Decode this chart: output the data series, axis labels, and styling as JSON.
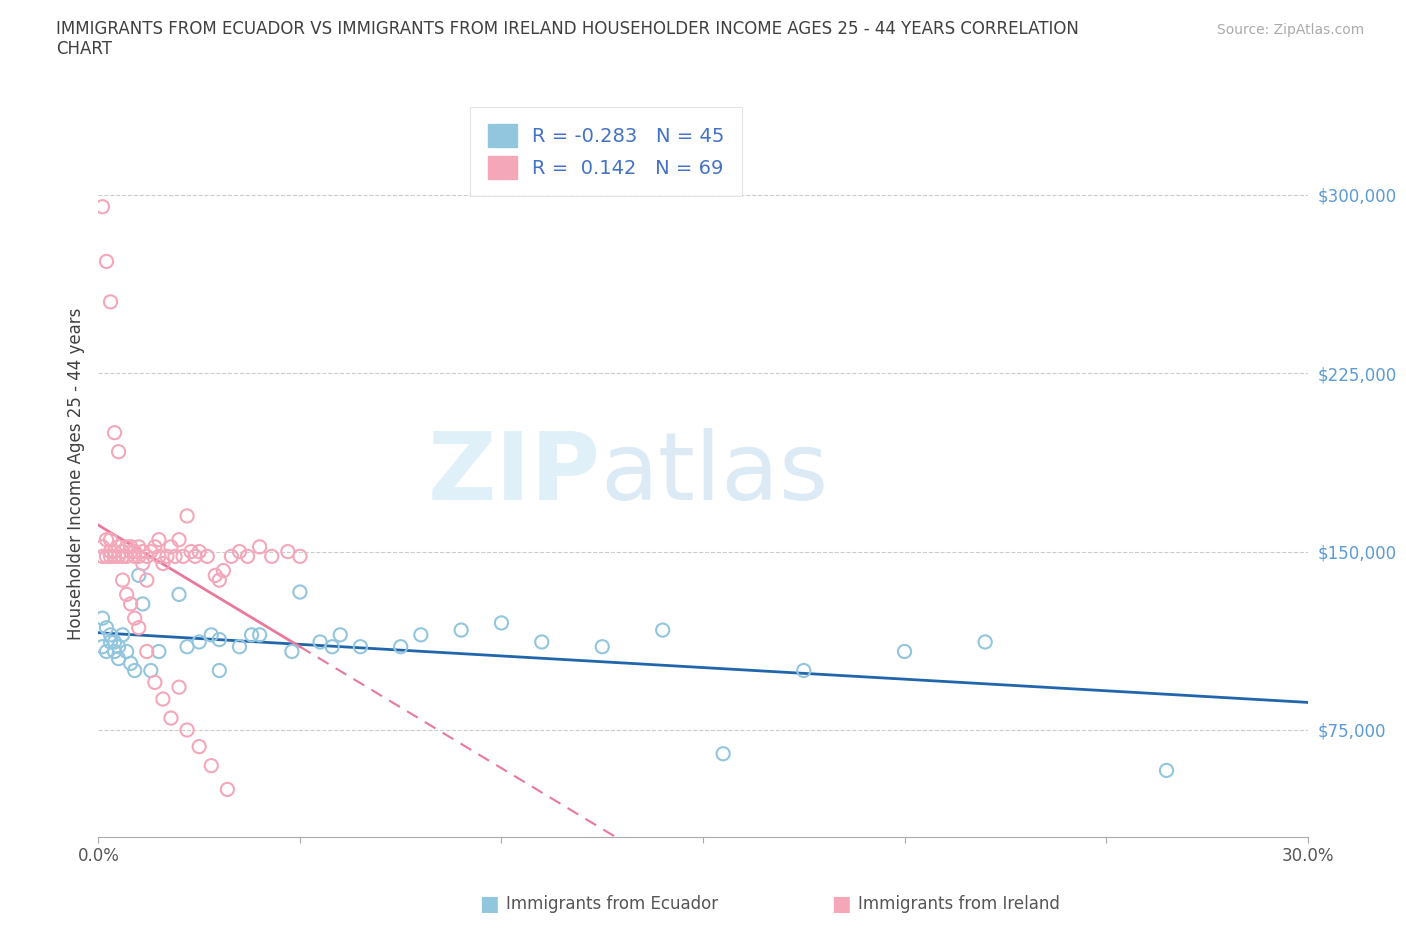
{
  "title_line1": "IMMIGRANTS FROM ECUADOR VS IMMIGRANTS FROM IRELAND HOUSEHOLDER INCOME AGES 25 - 44 YEARS CORRELATION",
  "title_line2": "CHART",
  "source": "Source: ZipAtlas.com",
  "ylabel_label": "Householder Income Ages 25 - 44 years",
  "watermark_text": "ZIP",
  "watermark_text2": "atlas",
  "x_min": 0.0,
  "x_max": 0.3,
  "y_min": 30000,
  "y_max": 335000,
  "y_ticks": [
    75000,
    150000,
    225000,
    300000
  ],
  "y_tick_labels": [
    "$75,000",
    "$150,000",
    "$225,000",
    "$300,000"
  ],
  "x_ticks": [
    0.0,
    0.05,
    0.1,
    0.15,
    0.2,
    0.25,
    0.3
  ],
  "x_tick_labels": [
    "0.0%",
    "",
    "",
    "",
    "",
    "",
    "30.0%"
  ],
  "ecuador_R": -0.283,
  "ecuador_N": 45,
  "ireland_R": 0.142,
  "ireland_N": 69,
  "ecuador_color": "#92c5de",
  "ireland_color": "#f4a7b9",
  "ecuador_line_color": "#2166ac",
  "ireland_line_color": "#e8799a",
  "grid_color": "#cccccc",
  "ecuador_x": [
    0.001,
    0.001,
    0.002,
    0.002,
    0.003,
    0.003,
    0.004,
    0.004,
    0.005,
    0.005,
    0.006,
    0.007,
    0.008,
    0.009,
    0.01,
    0.011,
    0.013,
    0.015,
    0.02,
    0.022,
    0.025,
    0.028,
    0.03,
    0.035,
    0.04,
    0.05,
    0.055,
    0.06,
    0.065,
    0.075,
    0.08,
    0.09,
    0.1,
    0.11,
    0.125,
    0.14,
    0.155,
    0.175,
    0.2,
    0.22,
    0.265,
    0.03,
    0.038,
    0.048,
    0.058
  ],
  "ecuador_y": [
    110000,
    122000,
    118000,
    108000,
    115000,
    112000,
    108000,
    112000,
    110000,
    105000,
    115000,
    108000,
    103000,
    100000,
    140000,
    128000,
    100000,
    108000,
    132000,
    110000,
    112000,
    115000,
    100000,
    110000,
    115000,
    133000,
    112000,
    115000,
    110000,
    110000,
    115000,
    117000,
    120000,
    112000,
    110000,
    117000,
    65000,
    100000,
    108000,
    112000,
    58000,
    113000,
    115000,
    108000,
    110000
  ],
  "ireland_x": [
    0.001,
    0.001,
    0.002,
    0.002,
    0.003,
    0.003,
    0.003,
    0.004,
    0.004,
    0.005,
    0.005,
    0.006,
    0.006,
    0.007,
    0.007,
    0.008,
    0.008,
    0.009,
    0.009,
    0.01,
    0.01,
    0.011,
    0.011,
    0.012,
    0.012,
    0.013,
    0.014,
    0.015,
    0.015,
    0.016,
    0.017,
    0.018,
    0.019,
    0.02,
    0.021,
    0.022,
    0.023,
    0.024,
    0.025,
    0.027,
    0.029,
    0.03,
    0.031,
    0.033,
    0.035,
    0.037,
    0.04,
    0.043,
    0.047,
    0.05,
    0.001,
    0.002,
    0.003,
    0.004,
    0.005,
    0.006,
    0.007,
    0.008,
    0.009,
    0.01,
    0.012,
    0.014,
    0.016,
    0.018,
    0.02,
    0.022,
    0.025,
    0.028,
    0.032
  ],
  "ireland_y": [
    148000,
    152000,
    148000,
    155000,
    150000,
    148000,
    155000,
    150000,
    148000,
    152000,
    148000,
    150000,
    148000,
    152000,
    148000,
    150000,
    152000,
    148000,
    150000,
    152000,
    148000,
    145000,
    150000,
    148000,
    138000,
    150000,
    152000,
    148000,
    155000,
    145000,
    148000,
    152000,
    148000,
    155000,
    148000,
    165000,
    150000,
    148000,
    150000,
    148000,
    140000,
    138000,
    142000,
    148000,
    150000,
    148000,
    152000,
    148000,
    150000,
    148000,
    295000,
    272000,
    255000,
    200000,
    192000,
    138000,
    132000,
    128000,
    122000,
    118000,
    108000,
    95000,
    88000,
    80000,
    93000,
    75000,
    68000,
    60000,
    50000
  ]
}
